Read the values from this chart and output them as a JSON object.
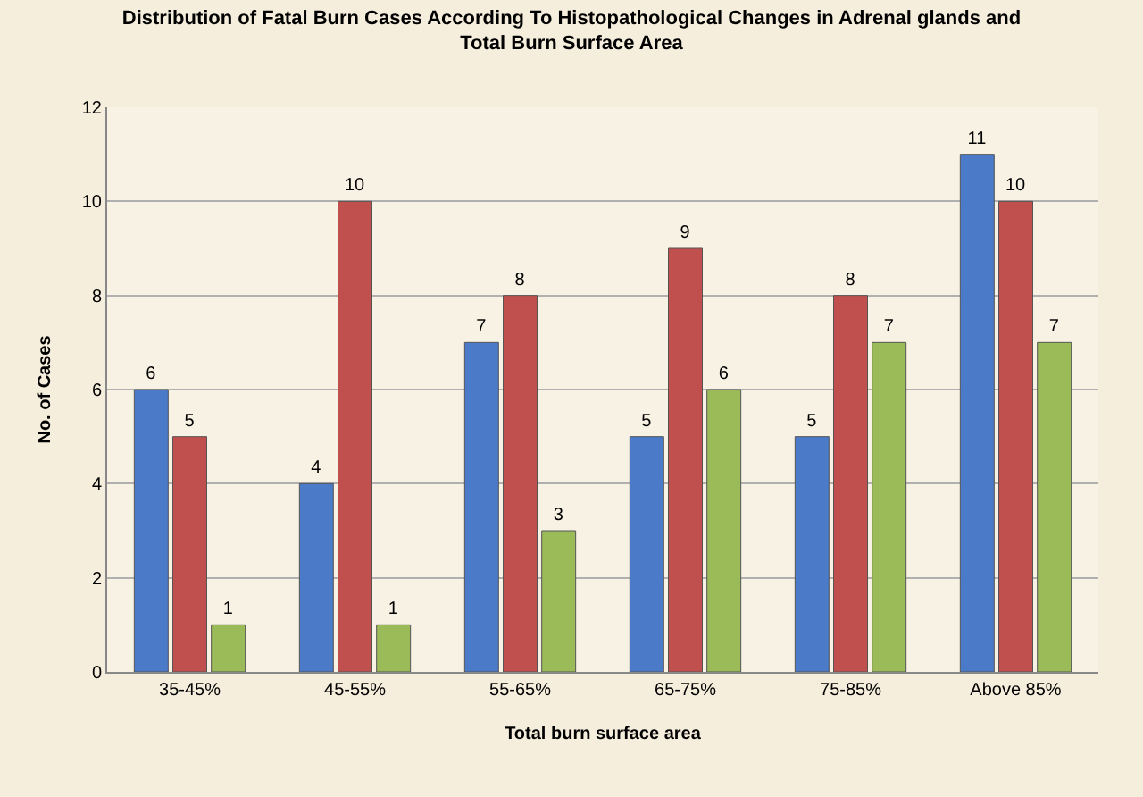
{
  "chart_data": {
    "type": "bar",
    "title": "Distribution of Fatal Burn Cases According To Histopathological Changes in Adrenal glands and\nTotal Burn Surface Area",
    "xlabel": "Total burn surface area",
    "ylabel": "No. of Cases",
    "categories": [
      "35-45%",
      "45-55%",
      "55-65%",
      "65-75%",
      "75-85%",
      "Above 85%"
    ],
    "series": [
      {
        "color": "#4a7ac8",
        "values": [
          6,
          4,
          7,
          5,
          5,
          11
        ]
      },
      {
        "color": "#c0504d",
        "values": [
          5,
          10,
          8,
          9,
          8,
          10
        ]
      },
      {
        "color": "#9bbb59",
        "values": [
          1,
          1,
          3,
          6,
          7,
          7
        ]
      }
    ],
    "ylim": [
      0,
      12
    ],
    "yticks": [
      0,
      2,
      4,
      6,
      8,
      10,
      12
    ],
    "grid": "y",
    "data_labels": true
  }
}
